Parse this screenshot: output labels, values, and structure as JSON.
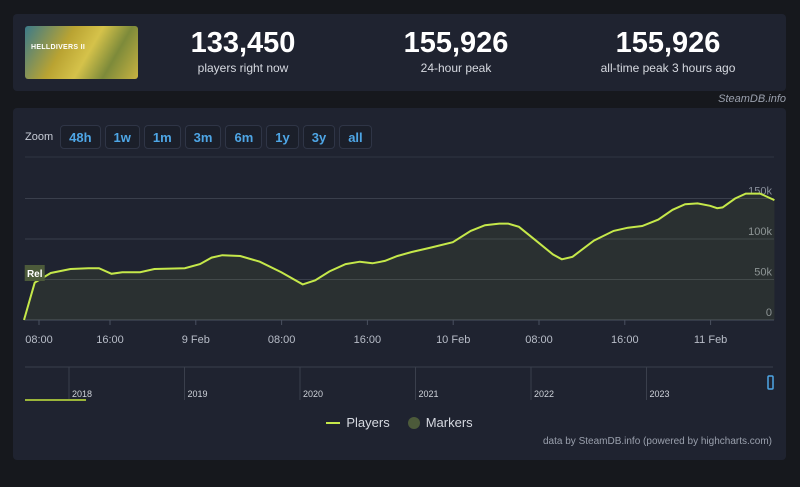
{
  "game": {
    "title_logo_text": "HELLDIVERS II"
  },
  "stats": [
    {
      "value": "133,450",
      "label": "players right now"
    },
    {
      "value": "155,926",
      "label": "24-hour peak"
    },
    {
      "value": "155,926",
      "label": "all-time peak 3 hours ago"
    }
  ],
  "credit": "SteamDB.info",
  "zoom": {
    "label": "Zoom",
    "buttons": [
      "48h",
      "1w",
      "1m",
      "3m",
      "6m",
      "1y",
      "3y",
      "all"
    ]
  },
  "legend": {
    "players": "Players",
    "markers": "Markers"
  },
  "footer": "data by SteamDB.info (powered by highcharts.com)",
  "colors": {
    "line": "#c5e84a",
    "marker": "#4c5a3a",
    "zoom_text": "#4ea6e6"
  },
  "chart_data": {
    "type": "line",
    "x_ticks": [
      "08:00",
      "16:00",
      "9 Feb",
      "08:00",
      "16:00",
      "10 Feb",
      "08:00",
      "16:00",
      "11 Feb"
    ],
    "y_ticks": [
      "0",
      "50k",
      "100k",
      "150k"
    ],
    "ylim": [
      0,
      150000
    ],
    "grid": true,
    "legend_placement": "bottom",
    "marker": {
      "label": "Rel",
      "time": "8 Feb 09:00"
    },
    "navigator_labels": [
      "2018",
      "2019",
      "2020",
      "2021",
      "2022",
      "2023"
    ],
    "series": [
      {
        "name": "Players",
        "points": [
          [
            "8 Feb 08:00",
            0
          ],
          [
            "8 Feb 09:00",
            46000
          ],
          [
            "8 Feb 10:30",
            58000
          ],
          [
            "8 Feb 12:20",
            63000
          ],
          [
            "8 Feb 14:00",
            64000
          ],
          [
            "8 Feb 15:00",
            64000
          ],
          [
            "8 Feb 16:10",
            57000
          ],
          [
            "8 Feb 17:10",
            59000
          ],
          [
            "8 Feb 18:50",
            59000
          ],
          [
            "8 Feb 20:10",
            63000
          ],
          [
            "8 Feb 23:00",
            64000
          ],
          [
            "9 Feb 00:25",
            69000
          ],
          [
            "9 Feb 01:30",
            77000
          ],
          [
            "9 Feb 02:30",
            80000
          ],
          [
            "9 Feb 04:10",
            79000
          ],
          [
            "9 Feb 06:00",
            72000
          ],
          [
            "9 Feb 08:00",
            59000
          ],
          [
            "9 Feb 10:00",
            44000
          ],
          [
            "9 Feb 11:10",
            49000
          ],
          [
            "9 Feb 12:30",
            60000
          ],
          [
            "9 Feb 14:00",
            69000
          ],
          [
            "9 Feb 15:20",
            72000
          ],
          [
            "9 Feb 16:30",
            70000
          ],
          [
            "9 Feb 17:40",
            73000
          ],
          [
            "9 Feb 18:50",
            79000
          ],
          [
            "9 Feb 20:10",
            84000
          ],
          [
            "9 Feb 21:50",
            89000
          ],
          [
            "10 Feb 00:00",
            96000
          ],
          [
            "10 Feb 01:40",
            110000
          ],
          [
            "10 Feb 03:00",
            117000
          ],
          [
            "10 Feb 04:20",
            119000
          ],
          [
            "10 Feb 05:10",
            119000
          ],
          [
            "10 Feb 06:10",
            115000
          ],
          [
            "10 Feb 07:40",
            99000
          ],
          [
            "10 Feb 09:20",
            81000
          ],
          [
            "10 Feb 10:10",
            75000
          ],
          [
            "10 Feb 11:10",
            78000
          ],
          [
            "10 Feb 13:10",
            98000
          ],
          [
            "10 Feb 15:00",
            110000
          ],
          [
            "10 Feb 16:20",
            114000
          ],
          [
            "10 Feb 17:40",
            116000
          ],
          [
            "10 Feb 19:10",
            124000
          ],
          [
            "10 Feb 20:30",
            136000
          ],
          [
            "10 Feb 21:40",
            143000
          ],
          [
            "10 Feb 22:50",
            144000
          ],
          [
            "11 Feb 00:00",
            141000
          ],
          [
            "11 Feb 00:40",
            138000
          ],
          [
            "11 Feb 01:10",
            139000
          ],
          [
            "11 Feb 02:20",
            150000
          ],
          [
            "11 Feb 03:20",
            156000
          ],
          [
            "11 Feb 04:40",
            156000
          ],
          [
            "11 Feb 06:00",
            148000
          ]
        ]
      }
    ]
  }
}
